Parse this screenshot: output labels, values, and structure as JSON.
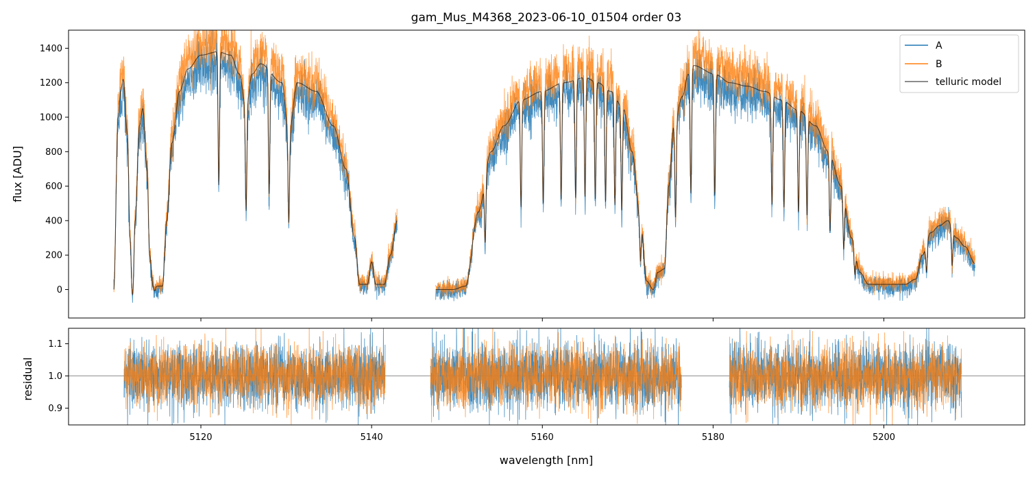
{
  "chart_data": [
    {
      "type": "line",
      "title": "gam_Mus_M4368_2023-06-10_01504  order 03",
      "xlabel": "",
      "ylabel": "flux [ADU]",
      "xlim": [
        5104.5,
        5216.5
      ],
      "ylim": [
        -165,
        1505
      ],
      "xticks": [
        5120,
        5140,
        5160,
        5180,
        5200
      ],
      "yticks": [
        0,
        200,
        400,
        600,
        800,
        1000,
        1200,
        1400
      ],
      "xticks_labeled": false,
      "legend_position": "top-right",
      "series": [
        {
          "name": "A",
          "color": "#1f77b4",
          "linewidth": 0.8,
          "opacity": 0.85
        },
        {
          "name": "B",
          "color": "#ff7f0e",
          "linewidth": 0.8,
          "opacity": 0.8
        },
        {
          "name": "telluric model",
          "color": "#000000",
          "linewidth": 1.1,
          "opacity": 0.6
        }
      ],
      "envelope_nodes": [
        [
          5109.8,
          0
        ],
        [
          5110.3,
          1000
        ],
        [
          5110.6,
          1150
        ],
        [
          5110.9,
          1220
        ],
        [
          5111.4,
          900
        ],
        [
          5111.7,
          300
        ],
        [
          5112.0,
          -30
        ],
        [
          5112.3,
          400
        ],
        [
          5112.8,
          950
        ],
        [
          5113.2,
          1050
        ],
        [
          5113.7,
          700
        ],
        [
          5114.0,
          200
        ],
        [
          5114.4,
          20
        ],
        [
          5115.5,
          20
        ],
        [
          5116.0,
          400
        ],
        [
          5116.6,
          850
        ],
        [
          5117.5,
          1150
        ],
        [
          5118.5,
          1280
        ],
        [
          5120,
          1360
        ],
        [
          5122,
          1380
        ],
        [
          5123.5,
          1360
        ],
        [
          5124.5,
          1250
        ],
        [
          5125.3,
          1050
        ],
        [
          5126.0,
          1250
        ],
        [
          5127,
          1310
        ],
        [
          5129.5,
          1200
        ],
        [
          5130.3,
          900
        ],
        [
          5131.3,
          1200
        ],
        [
          5133.5,
          1150
        ],
        [
          5135.5,
          950
        ],
        [
          5137.0,
          700
        ],
        [
          5138.0,
          300
        ],
        [
          5138.6,
          30
        ],
        [
          5139.5,
          30
        ],
        [
          5140.0,
          160
        ],
        [
          5140.5,
          30
        ],
        [
          5141.5,
          30
        ],
        [
          5142.2,
          200
        ],
        [
          5143.0,
          400
        ],
        [
          5147.5,
          0
        ],
        [
          5149.5,
          0
        ],
        [
          5151.0,
          20
        ],
        [
          5152.5,
          450
        ],
        [
          5154.0,
          800
        ],
        [
          5155.5,
          950
        ],
        [
          5157.5,
          1100
        ],
        [
          5160,
          1150
        ],
        [
          5162.5,
          1200
        ],
        [
          5165.0,
          1230
        ],
        [
          5166.5,
          1200
        ],
        [
          5168.0,
          1150
        ],
        [
          5169.5,
          1050
        ],
        [
          5170.5,
          800
        ],
        [
          5171.5,
          400
        ],
        [
          5172.2,
          50
        ],
        [
          5173.0,
          0
        ],
        [
          5173.5,
          100
        ],
        [
          5174.3,
          120
        ],
        [
          5174.8,
          600
        ],
        [
          5175.4,
          950
        ],
        [
          5176.4,
          1120
        ],
        [
          5177.1,
          1250
        ],
        [
          5177.7,
          1300
        ],
        [
          5180.2,
          1250
        ],
        [
          5182.0,
          1200
        ],
        [
          5184.0,
          1180
        ],
        [
          5186.0,
          1150
        ],
        [
          5188.0,
          1100
        ],
        [
          5190.0,
          1040
        ],
        [
          5192.0,
          950
        ],
        [
          5193.5,
          800
        ],
        [
          5195.0,
          600
        ],
        [
          5196.2,
          300
        ],
        [
          5197.2,
          100
        ],
        [
          5198.2,
          30
        ],
        [
          5200,
          30
        ],
        [
          5202.5,
          30
        ],
        [
          5203.7,
          60
        ],
        [
          5204.5,
          200
        ],
        [
          5205.5,
          330
        ],
        [
          5206.5,
          370
        ],
        [
          5207.5,
          400
        ],
        [
          5208.5,
          300
        ],
        [
          5209.5,
          250
        ],
        [
          5210.7,
          150
        ]
      ],
      "absorption_lines": [
        5112.0,
        5114.6,
        5122.1,
        5125.3,
        5128.0,
        5130.3,
        5153.3,
        5157.5,
        5160.1,
        5162.2,
        5163.9,
        5165.0,
        5166.2,
        5167.4,
        5168.5,
        5169.3,
        5171.5,
        5175.6,
        5177.4,
        5180.2,
        5186.9,
        5188.3,
        5190.0,
        5191.0,
        5193.7,
        5195.3,
        5196.6,
        5205.0,
        5208.0
      ]
    },
    {
      "type": "line",
      "title": "",
      "xlabel": "wavelength [nm]",
      "ylabel": "residual",
      "xlim": [
        5104.5,
        5216.5
      ],
      "ylim": [
        0.848,
        1.148
      ],
      "xticks": [
        5120,
        5140,
        5160,
        5180,
        5200
      ],
      "yticks": [
        0.9,
        1.0,
        1.1
      ],
      "reference_line": 1.0,
      "segments": [
        [
          5111.0,
          5141.6
        ],
        [
          5146.9,
          5176.3
        ],
        [
          5181.9,
          5209.1
        ]
      ],
      "noise_sigma": 0.05,
      "series": [
        {
          "name": "A",
          "color": "#1f77b4"
        },
        {
          "name": "B",
          "color": "#ff7f0e"
        }
      ]
    }
  ]
}
